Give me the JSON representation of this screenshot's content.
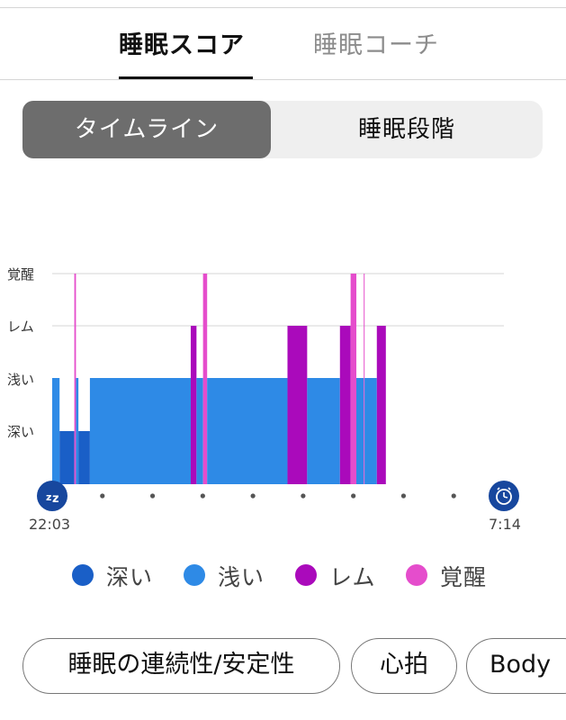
{
  "tabs": [
    {
      "label": "睡眠スコア",
      "active": true
    },
    {
      "label": "睡眠コーチ",
      "active": false
    }
  ],
  "segmented": [
    {
      "label": "タイムライン",
      "active": true
    },
    {
      "label": "睡眠段階",
      "active": false
    }
  ],
  "chart": {
    "start_time": "22:03",
    "end_time": "7:14",
    "start_icon": "sleep-zz-icon",
    "end_icon": "alarm-clock-icon"
  },
  "chart_data": {
    "type": "timeline",
    "stage_labels": [
      "覚醒",
      "レム",
      "浅い",
      "深い"
    ],
    "start": "22:03",
    "end": "7:14",
    "total_minutes": 551,
    "segments": [
      {
        "stage": "浅い",
        "start_min": 0,
        "end_min": 9
      },
      {
        "stage": "深い",
        "start_min": 9,
        "end_min": 27
      },
      {
        "stage": "覚醒",
        "start_min": 27,
        "end_min": 29
      },
      {
        "stage": "浅い",
        "start_min": 29,
        "end_min": 32
      },
      {
        "stage": "深い",
        "start_min": 32,
        "end_min": 46
      },
      {
        "stage": "浅い",
        "start_min": 46,
        "end_min": 169
      },
      {
        "stage": "レム",
        "start_min": 169,
        "end_min": 176
      },
      {
        "stage": "浅い",
        "start_min": 176,
        "end_min": 184
      },
      {
        "stage": "覚醒",
        "start_min": 184,
        "end_min": 189
      },
      {
        "stage": "浅い",
        "start_min": 189,
        "end_min": 287
      },
      {
        "stage": "レム",
        "start_min": 287,
        "end_min": 311
      },
      {
        "stage": "浅い",
        "start_min": 311,
        "end_min": 351
      },
      {
        "stage": "レム",
        "start_min": 351,
        "end_min": 364
      },
      {
        "stage": "覚醒",
        "start_min": 364,
        "end_min": 371
      },
      {
        "stage": "浅い",
        "start_min": 371,
        "end_min": 380
      },
      {
        "stage": "覚醒",
        "start_min": 380,
        "end_min": 381
      },
      {
        "stage": "浅い",
        "start_min": 381,
        "end_min": 396
      },
      {
        "stage": "レム",
        "start_min": 396,
        "end_min": 407
      }
    ],
    "colors": {
      "深い": "#1a5fc7",
      "浅い": "#2e8ae6",
      "レム": "#aa0abb",
      "覚醒": "#e54dcc"
    }
  },
  "legend": [
    {
      "label": "深い",
      "color": "#1a5fc7"
    },
    {
      "label": "浅い",
      "color": "#2e8ae6"
    },
    {
      "label": "レム",
      "color": "#aa0abb"
    },
    {
      "label": "覚醒",
      "color": "#e54dcc"
    }
  ],
  "chips": [
    {
      "label": "睡眠の連続性/安定性"
    },
    {
      "label": "心拍"
    },
    {
      "label": "Body"
    }
  ]
}
